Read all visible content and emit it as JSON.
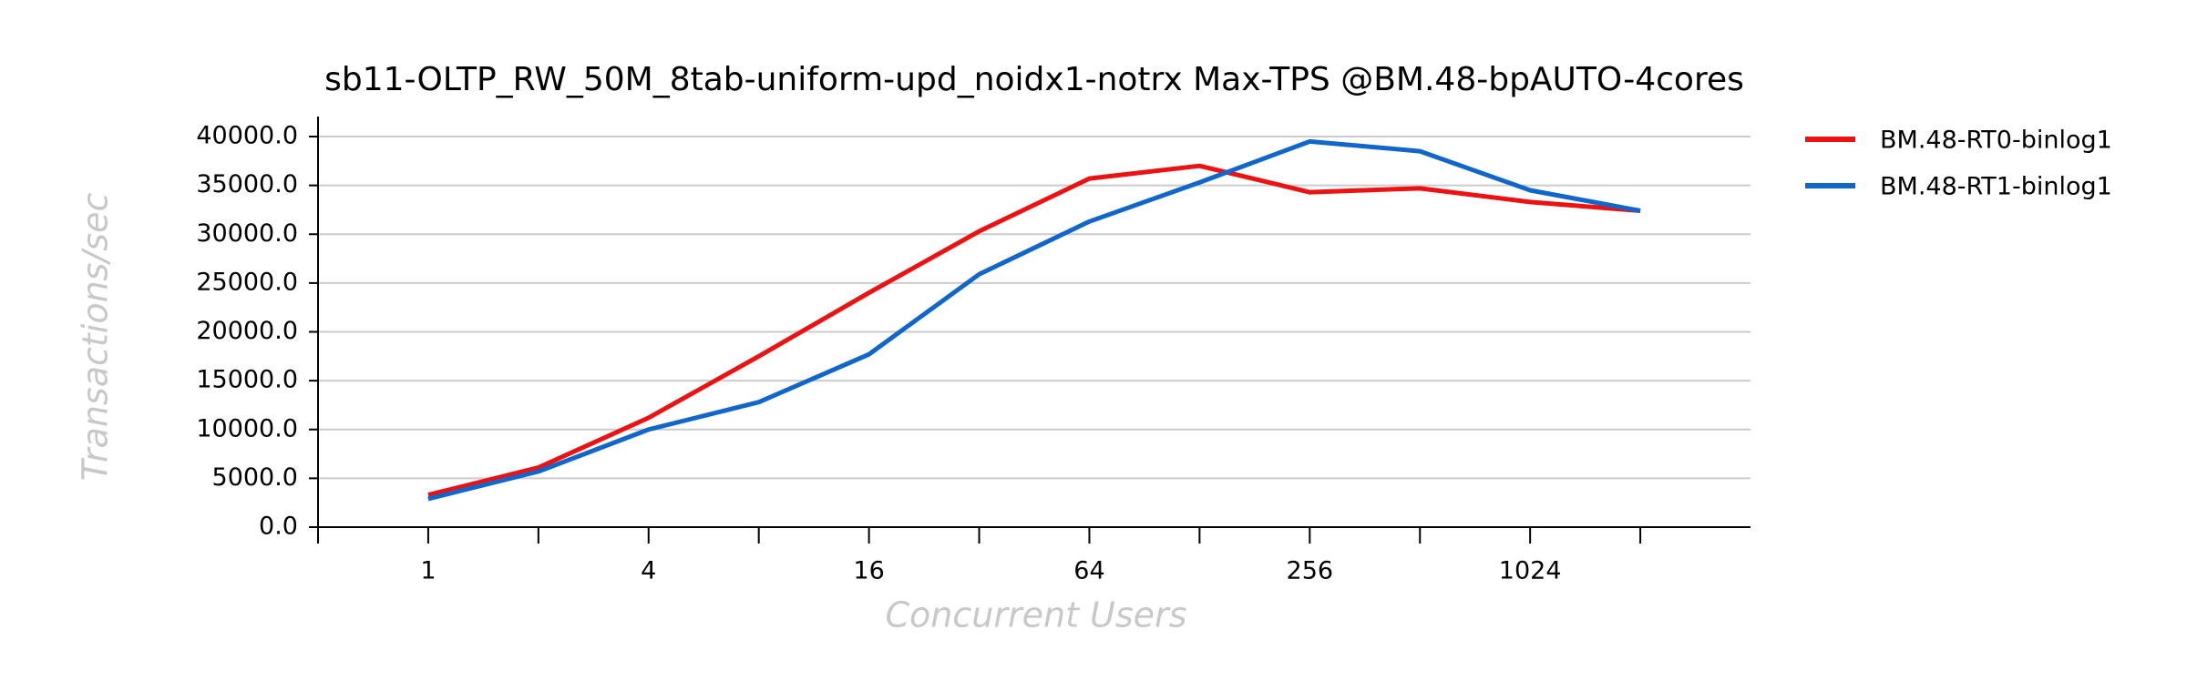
{
  "chart_data": {
    "type": "line",
    "title": "sb11-OLTP_RW_50M_8tab-uniform-upd_noidx1-notrx Max-TPS @BM.48-bpAUTO-4cores",
    "x_label": "Concurrent Users",
    "y_label": "Transactions/sec",
    "categories": [
      "1",
      null,
      "4",
      null,
      "16",
      null,
      "64",
      null,
      "256",
      null,
      "1024",
      null
    ],
    "series": [
      {
        "name": "BM.48-RT0-binlog1",
        "color": "#ee1111",
        "values": [
          3300,
          6100,
          11200,
          17500,
          24000,
          30300,
          35700,
          37000,
          34300,
          34700,
          33300,
          32400
        ]
      },
      {
        "name": "BM.48-RT1-binlog1",
        "color": "#1166cc",
        "values": [
          2900,
          5700,
          10000,
          12800,
          17700,
          25900,
          31300,
          35300,
          39500,
          38500,
          34500,
          32400
        ]
      }
    ],
    "ylim": [
      0,
      40000
    ],
    "yticks": [
      {
        "value": 0,
        "label": "0.0"
      },
      {
        "value": 5000,
        "label": "5000.0"
      },
      {
        "value": 10000,
        "label": "10000.0"
      },
      {
        "value": 15000,
        "label": "15000.0"
      },
      {
        "value": 20000,
        "label": "20000.0"
      },
      {
        "value": 25000,
        "label": "25000.0"
      },
      {
        "value": 30000,
        "label": "30000.0"
      },
      {
        "value": 35000,
        "label": "35000.0"
      },
      {
        "value": 40000,
        "label": "40000.0"
      }
    ],
    "grid": true,
    "legend": "outside-right"
  }
}
